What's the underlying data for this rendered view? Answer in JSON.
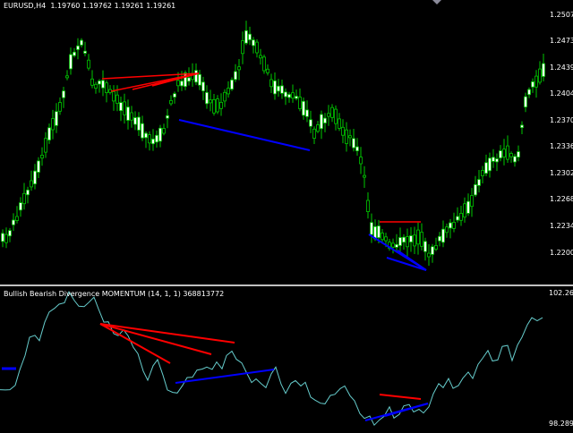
{
  "symbol_header": {
    "symbol": "EURUSD,H4",
    "ohlc": "1.19760 1.19762 1.19261 1.19261"
  },
  "indicator_header": "Bullish Bearish Divergence MOMENTUM (14, 1, 1) 368813772",
  "price_axis": {
    "labels": [
      "1.25070",
      "1.24730",
      "1.24390",
      "1.24040",
      "1.23700",
      "1.23360",
      "1.23020",
      "1.22680",
      "1.22340",
      "1.22000"
    ]
  },
  "indicator_axis": {
    "top_label": "102.2619",
    "bottom_label": "98.289"
  },
  "colors": {
    "background": "#000000",
    "candles": "#00c800",
    "candle_body": "#ffffff",
    "bearish_divergence": "#ff0000",
    "bullish_divergence": "#0000ff",
    "momentum_line": "#66cccc",
    "separator": "#c0c0c0",
    "axis_text": "#ffffff"
  },
  "chart_data": {
    "type": "line",
    "x": [
      0,
      6,
      11,
      17,
      22,
      28,
      33,
      39,
      44,
      50,
      55,
      61,
      66,
      72,
      77,
      83,
      88,
      94,
      99,
      105,
      110,
      116,
      121,
      127,
      132,
      138,
      143,
      149,
      154,
      160,
      165,
      171,
      176,
      182,
      187,
      193,
      198,
      204,
      209,
      215,
      220,
      226,
      231,
      237,
      242,
      248,
      253,
      259,
      264,
      270,
      275,
      281,
      286,
      292,
      297,
      303,
      308,
      314,
      319,
      325,
      330,
      336,
      341,
      347,
      352,
      358,
      363,
      369,
      374,
      380,
      385,
      391,
      396,
      402,
      407,
      413,
      418,
      424,
      429,
      435,
      440,
      446,
      451,
      457,
      462,
      468,
      473,
      479,
      484,
      490,
      495,
      501,
      506,
      512,
      517,
      523,
      528,
      534,
      539,
      545,
      550,
      556,
      561,
      567,
      572,
      578,
      583,
      589,
      594,
      600,
      606
    ],
    "series": [
      {
        "values": [
          99.36,
          99.35,
          99.36,
          99.49,
          99.94,
          100.37,
          100.91,
          100.97,
          100.81,
          101.36,
          101.66,
          101.77,
          101.89,
          101.93,
          102.26,
          102.0,
          101.83,
          101.82,
          101.94,
          102.1,
          101.75,
          101.36,
          101.37,
          101.02,
          100.96,
          101.13,
          100.96,
          100.61,
          100.43,
          99.91,
          99.64,
          100.07,
          100.25,
          99.79,
          99.35,
          99.28,
          99.26,
          99.49,
          99.72,
          99.73,
          99.94,
          99.97,
          100.03,
          99.96,
          100.18,
          99.98,
          100.37,
          100.5,
          100.26,
          100.15,
          99.88,
          99.57,
          99.68,
          99.53,
          99.42,
          99.83,
          100.03,
          99.52,
          99.25,
          99.55,
          99.63,
          99.47,
          99.58,
          99.14,
          99.05,
          98.96,
          98.94,
          99.19,
          99.22,
          99.39,
          99.47,
          99.18,
          99.03,
          98.65,
          98.51,
          98.58,
          98.31,
          98.47,
          98.57,
          98.85,
          98.52,
          98.63,
          98.88,
          98.92,
          98.7,
          98.78,
          98.67,
          98.85,
          99.24,
          99.54,
          99.42,
          99.69,
          99.4,
          99.48,
          99.7,
          99.88,
          99.69,
          100.11,
          100.29,
          100.52,
          100.21,
          100.24,
          100.64,
          100.67,
          100.22,
          100.68,
          100.91,
          101.28,
          101.49,
          101.4,
          101.49
        ]
      }
    ],
    "ylim": [
      98.289,
      102.2619
    ]
  }
}
